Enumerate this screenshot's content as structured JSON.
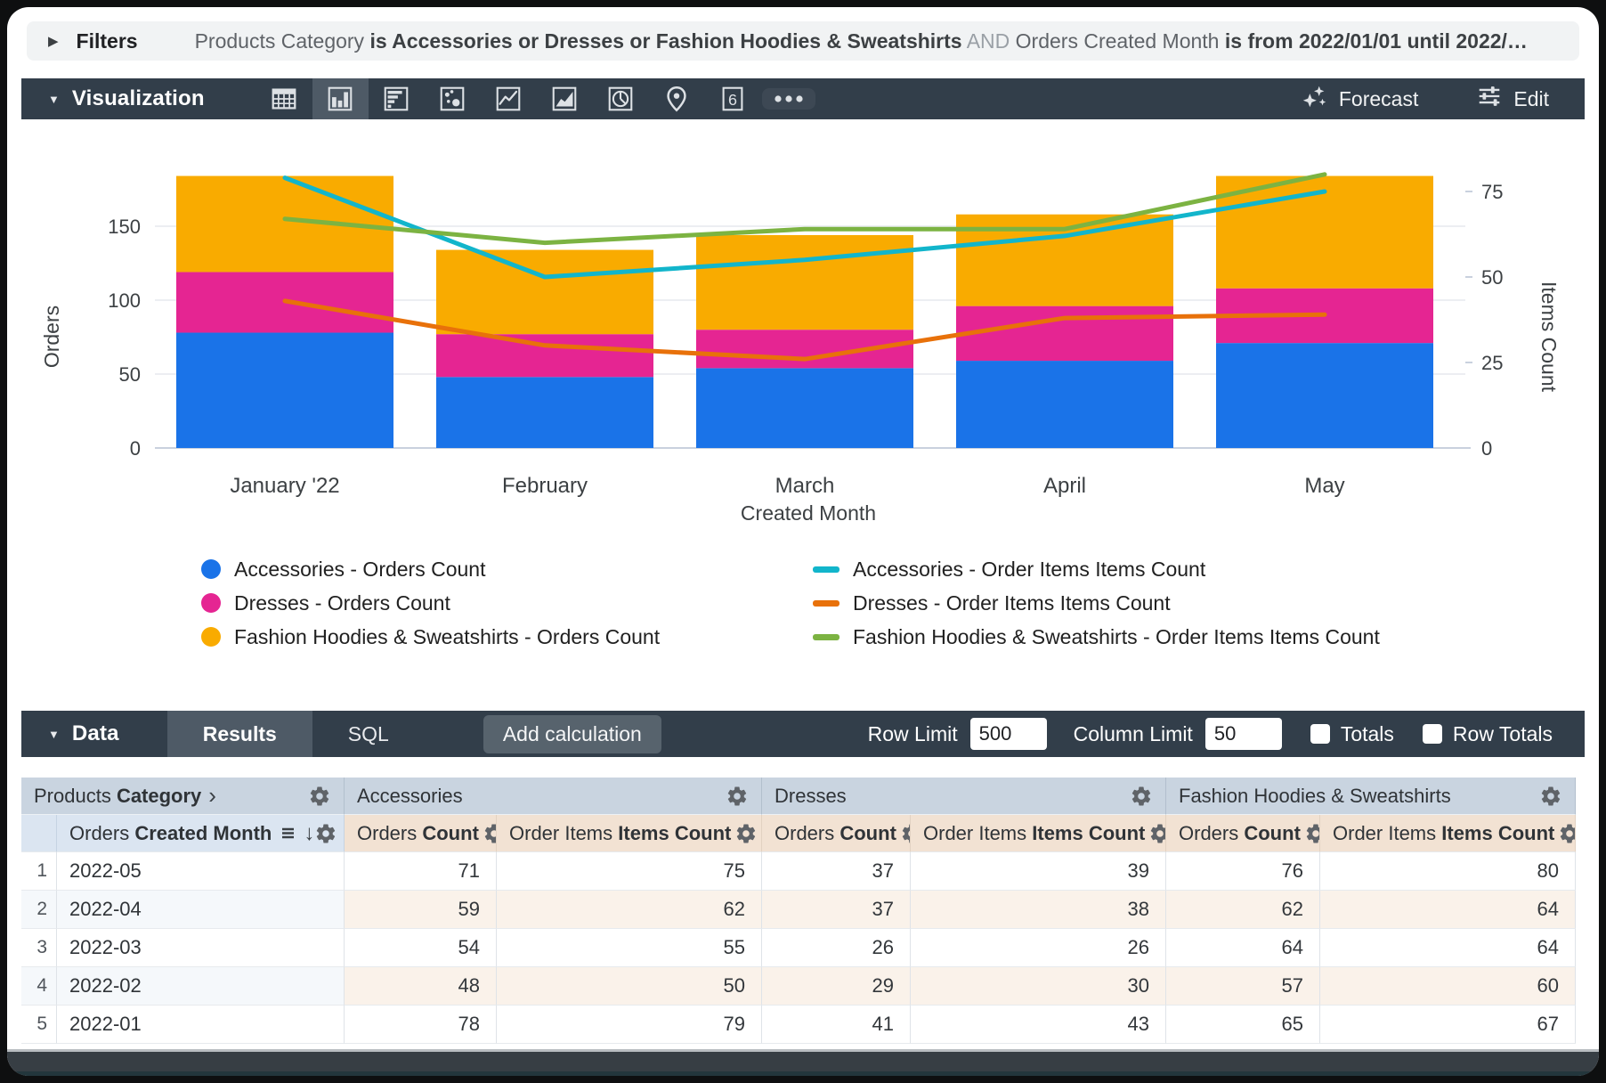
{
  "filters_bar": {
    "label": "Filters",
    "segments": [
      {
        "text": "Products Category ",
        "style": "field"
      },
      {
        "text": "is Accessories or Dresses or Fashion Hoodies & Sweatshirts",
        "style": "value"
      },
      {
        "text": " AND ",
        "style": "and"
      },
      {
        "text": "Orders Created Month ",
        "style": "field"
      },
      {
        "text": "is from 2022/01/01 until 2022/…",
        "style": "value"
      }
    ]
  },
  "viz_bar": {
    "label": "Visualization",
    "icons": [
      "table",
      "column-chart",
      "bar-chart",
      "scatter",
      "line-chart",
      "area-chart",
      "pie-chart",
      "map",
      "single-value",
      "more-options"
    ],
    "selected_icon": "column-chart",
    "single_value_text": "6",
    "forecast_label": "Forecast",
    "edit_label": "Edit"
  },
  "chart_data": {
    "type": "combo: stacked bar + line",
    "categories": [
      "January '22",
      "February",
      "March",
      "April",
      "May"
    ],
    "xlabel": "Created Month",
    "y_left": {
      "label": "Orders",
      "ticks": [
        0,
        50,
        100,
        150
      ],
      "max": 185
    },
    "y_right": {
      "label": "Items Count",
      "ticks": [
        0,
        25,
        50,
        75
      ],
      "max": 97
    },
    "grid": "horizontal lines at left-axis ticks",
    "legend_position": "bottom, two columns",
    "bar_series": [
      {
        "name": "Accessories - Orders Count",
        "color": "#1A73E8",
        "values": [
          78,
          48,
          54,
          59,
          71
        ]
      },
      {
        "name": "Dresses - Orders Count",
        "color": "#E52592",
        "values": [
          41,
          29,
          26,
          37,
          37
        ]
      },
      {
        "name": "Fashion Hoodies & Sweatshirts - Orders Count",
        "color": "#F9AB00",
        "values": [
          65,
          57,
          64,
          62,
          76
        ]
      }
    ],
    "line_series": [
      {
        "name": "Accessories - Order Items Items Count",
        "color": "#12B5CB",
        "values": [
          79,
          50,
          55,
          62,
          75
        ]
      },
      {
        "name": "Dresses - Order Items Items Count",
        "color": "#E8710A",
        "values": [
          43,
          30,
          26,
          38,
          39
        ]
      },
      {
        "name": "Fashion Hoodies & Sweatshirts - Order Items Items Count",
        "color": "#7CB342",
        "values": [
          67,
          60,
          64,
          64,
          80
        ]
      }
    ]
  },
  "data_bar": {
    "label": "Data",
    "tabs": [
      {
        "label": "Results",
        "active": true
      },
      {
        "label": "SQL",
        "active": false
      }
    ],
    "add_calculation_label": "Add calculation",
    "row_limit_label": "Row Limit",
    "row_limit_value": "500",
    "column_limit_label": "Column Limit",
    "column_limit_value": "50",
    "totals_label": "Totals",
    "totals_checked": false,
    "row_totals_label": "Row Totals",
    "row_totals_checked": false
  },
  "table": {
    "dimension_group_header": {
      "prefix": "Products ",
      "bold": "Category"
    },
    "dimension_column_header": {
      "prefix": "Orders ",
      "bold": "Created Month"
    },
    "groups": [
      "Accessories",
      "Dresses",
      "Fashion Hoodies & Sweatshirts"
    ],
    "measure_headers": [
      {
        "prefix": "Orders ",
        "bold": "Count"
      },
      {
        "prefix": "Order Items ",
        "bold": "Items Count"
      }
    ],
    "rows": [
      {
        "num": "1",
        "month": "2022-05",
        "values": [
          71,
          75,
          37,
          39,
          76,
          80
        ]
      },
      {
        "num": "2",
        "month": "2022-04",
        "values": [
          59,
          62,
          37,
          38,
          62,
          64
        ]
      },
      {
        "num": "3",
        "month": "2022-03",
        "values": [
          54,
          55,
          26,
          26,
          64,
          64
        ]
      },
      {
        "num": "4",
        "month": "2022-02",
        "values": [
          48,
          50,
          29,
          30,
          57,
          60
        ]
      },
      {
        "num": "5",
        "month": "2022-01",
        "values": [
          78,
          79,
          41,
          43,
          65,
          67
        ]
      }
    ]
  }
}
